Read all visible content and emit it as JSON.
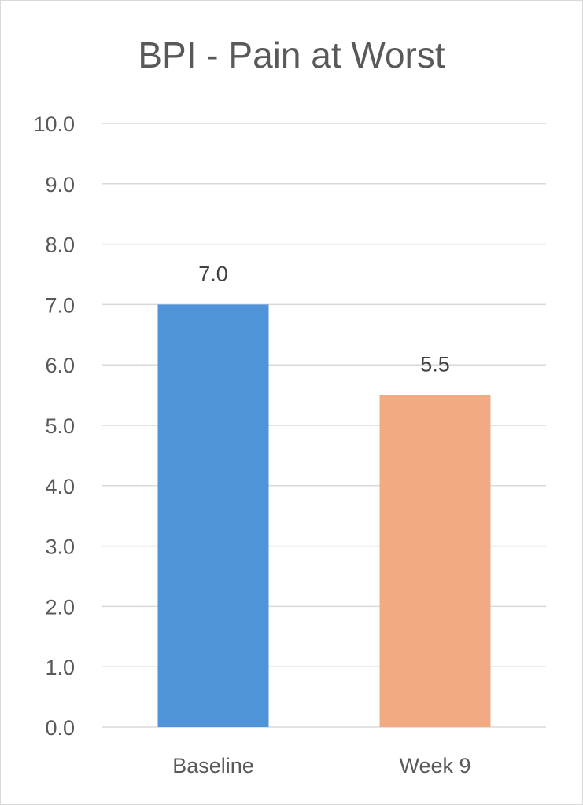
{
  "chart_data": {
    "type": "bar",
    "title": "BPI - Pain at Worst",
    "categories": [
      "Baseline",
      "Week 9"
    ],
    "values": [
      7.0,
      5.5
    ],
    "value_labels": [
      "7.0",
      "5.5"
    ],
    "bar_colors": [
      "#4f94d8",
      "#f2aa84"
    ],
    "ylim": [
      0,
      10
    ],
    "yticks": [
      0,
      1,
      2,
      3,
      4,
      5,
      6,
      7,
      8,
      9,
      10
    ],
    "ytick_labels": [
      "0.0",
      "1.0",
      "2.0",
      "3.0",
      "4.0",
      "5.0",
      "6.0",
      "7.0",
      "8.0",
      "9.0",
      "10.0"
    ],
    "xlabel": "",
    "ylabel": "",
    "grid": true,
    "legend": "none"
  }
}
